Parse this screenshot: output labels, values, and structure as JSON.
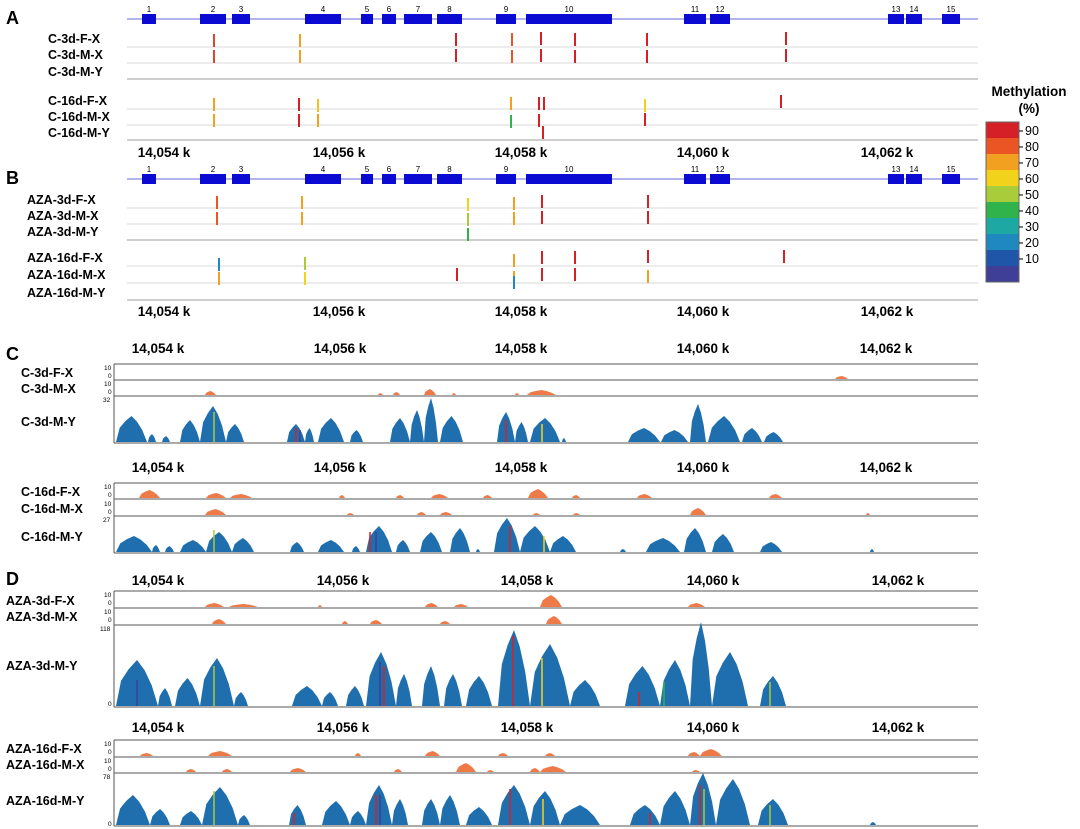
{
  "colors": {
    "exon": "#0a0ad2",
    "intron": "#9898e6",
    "coverage": "#1f6fae",
    "xcov": "#ee7a48",
    "trackline": "#bdbdbd",
    "legend": [
      "#3f3f98",
      "#2056a8",
      "#1f88bf",
      "#1ea8a3",
      "#2fb34a",
      "#a8cc3a",
      "#f3d21c",
      "#f2a01f",
      "#eb5524",
      "#d62027"
    ]
  },
  "genomic_axis": {
    "ticks": [
      "14,054 k",
      "14,056 k",
      "14,058 k",
      "14,060 k",
      "14,062 k"
    ]
  },
  "gene_model": {
    "exon_labels": [
      "1",
      "2",
      "3",
      "4",
      "5",
      "6",
      "7",
      "8",
      "9",
      "10",
      "11",
      "12",
      "13",
      "14",
      "15"
    ]
  },
  "legend": {
    "title_line1": "Methylation",
    "title_line2": "(%)",
    "ticks": [
      "90",
      "80",
      "70",
      "60",
      "50",
      "40",
      "30",
      "20",
      "10"
    ]
  },
  "panels": {
    "A": {
      "letter": "A",
      "group1": [
        "C-3d-F-X",
        "C-3d-M-X",
        "C-3d-M-Y"
      ],
      "group2": [
        "C-16d-F-X",
        "C-16d-M-X",
        "C-16d-M-Y"
      ]
    },
    "B": {
      "letter": "B",
      "group1": [
        "AZA-3d-F-X",
        "AZA-3d-M-X",
        "AZA-3d-M-Y"
      ],
      "group2": [
        "AZA-16d-F-X",
        "AZA-16d-M-X",
        "AZA-16d-M-Y"
      ]
    },
    "C": {
      "letter": "C",
      "group1": [
        "C-3d-F-X",
        "C-3d-M-X",
        "C-3d-M-Y"
      ],
      "group2": [
        "C-16d-F-X",
        "C-16d-M-X",
        "C-16d-M-Y"
      ],
      "scales1": [
        "10",
        "0",
        "10",
        "0",
        "32"
      ],
      "scales2": [
        "10",
        "0",
        "10",
        "0",
        "27"
      ]
    },
    "D": {
      "letter": "D",
      "group1": [
        "AZA-3d-F-X",
        "AZA-3d-M-X",
        "AZA-3d-M-Y"
      ],
      "group2": [
        "AZA-16d-F-X",
        "AZA-16d-M-X",
        "AZA-16d-M-Y"
      ],
      "scales1": [
        "10",
        "0",
        "10",
        "0",
        "118",
        "0"
      ],
      "scales2": [
        "10",
        "0",
        "10",
        "0",
        "78",
        "0"
      ]
    }
  }
}
